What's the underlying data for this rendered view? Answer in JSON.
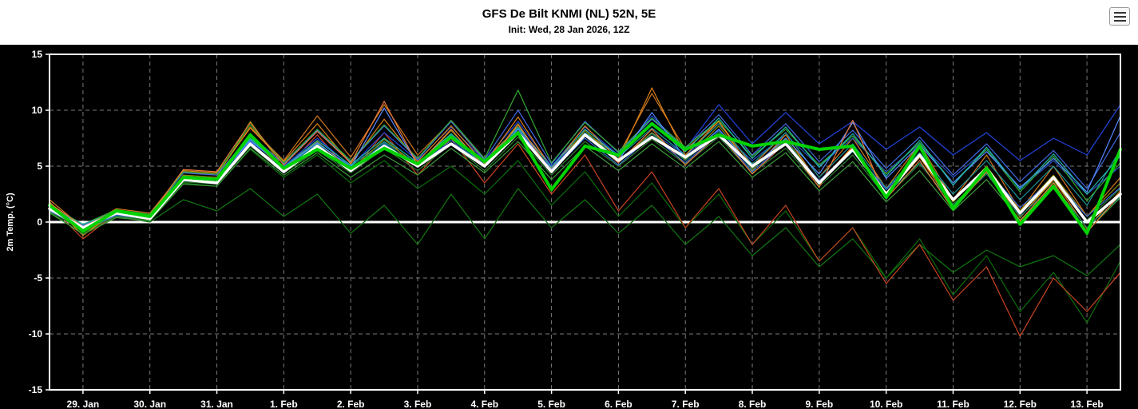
{
  "header": {
    "title": "GFS De Bilt KNMI (NL) 52N, 5E",
    "subtitle": "Init: Wed, 28 Jan 2026, 12Z"
  },
  "menu": {
    "icon": "hamburger-menu-icon"
  },
  "colors": {
    "plot_bg": "#000000",
    "header_bg": "#ffffff",
    "grid": "#7a7a7a",
    "axis_text": "#ffffff",
    "border": "#ffffff",
    "zero_line": "#ffffff",
    "mean_line": "#ffffff",
    "operational_line": "#00d300"
  },
  "chart_data": {
    "type": "line",
    "title": "GFS De Bilt KNMI (NL) 52N, 5E",
    "subtitle": "Init: Wed, 28 Jan 2026, 12Z",
    "ylabel": "2m Temp. (°C)",
    "ylim": [
      -15,
      15
    ],
    "yticks": [
      -15,
      -10,
      -5,
      0,
      5,
      10,
      15
    ],
    "x_tick_labels": [
      "29. Jan",
      "30. Jan",
      "31. Jan",
      "1. Feb",
      "2. Feb",
      "3. Feb",
      "4. Feb",
      "5. Feb",
      "6. Feb",
      "7. Feb",
      "8. Feb",
      "9. Feb",
      "10. Feb",
      "11. Feb",
      "12. Feb",
      "13. Feb"
    ],
    "x_step_days": 0.5,
    "x_label_offset_days": 0.5,
    "grid": "dashed",
    "legend": "none",
    "series": {
      "mean": {
        "name": "ensemble-mean",
        "color": "#ffffff",
        "values": [
          1.2,
          -0.5,
          0.8,
          0.3,
          3.8,
          3.5,
          7.0,
          4.5,
          6.8,
          4.6,
          6.8,
          5.0,
          7.0,
          5.0,
          8.0,
          4.5,
          7.8,
          5.5,
          7.6,
          5.8,
          7.8,
          5.0,
          7.0,
          3.5,
          6.5,
          2.5,
          6.0,
          2.0,
          4.8,
          0.8,
          4.0,
          0.0,
          2.5
        ]
      },
      "operational": {
        "name": "operational-run",
        "color": "#00d300",
        "values": [
          1.5,
          -0.8,
          1.0,
          0.5,
          4.0,
          3.8,
          7.8,
          4.8,
          6.5,
          4.8,
          6.6,
          5.2,
          7.6,
          5.4,
          8.0,
          2.9,
          6.8,
          6.0,
          8.8,
          6.5,
          7.8,
          6.8,
          7.2,
          6.5,
          6.8,
          2.2,
          6.8,
          1.2,
          4.8,
          -0.2,
          3.2,
          -1.0,
          6.5
        ]
      },
      "members": [
        {
          "color": "#117711",
          "values": [
            0.8,
            -1.0,
            0.5,
            0.0,
            2.0,
            1.0,
            3.0,
            0.5,
            2.5,
            -1.0,
            1.5,
            -2.0,
            2.5,
            -1.5,
            3.0,
            -0.5,
            2.0,
            -1.0,
            1.5,
            -2.0,
            0.5,
            -3.0,
            -0.5,
            -4.0,
            -1.5,
            -5.0,
            -2.0,
            -4.5,
            -2.5,
            -4.0,
            -3.0,
            -4.8,
            -2.0
          ]
        },
        {
          "color": "#0a6e0a",
          "values": [
            1.0,
            -0.7,
            0.6,
            0.2,
            3.5,
            3.2,
            6.5,
            4.0,
            6.0,
            3.5,
            5.5,
            3.0,
            5.0,
            2.5,
            5.5,
            1.5,
            4.5,
            0.5,
            3.5,
            -0.5,
            2.5,
            -2.0,
            1.0,
            -3.5,
            -0.5,
            -5.0,
            -1.5,
            -6.5,
            -3.0,
            -8.0,
            -4.5,
            -9.0,
            -3.5
          ]
        },
        {
          "color": "#cc4422",
          "values": [
            1.5,
            -1.5,
            0.8,
            0.4,
            4.2,
            3.6,
            7.5,
            4.6,
            7.8,
            4.4,
            8.0,
            4.2,
            7.5,
            3.5,
            7.0,
            2.5,
            6.0,
            1.0,
            4.5,
            -0.5,
            3.0,
            -2.0,
            1.5,
            -3.5,
            -0.5,
            -5.5,
            -2.0,
            -7.0,
            -4.0,
            -10.2,
            -5.0,
            -8.0,
            -4.5
          ]
        },
        {
          "color": "#d2781e",
          "values": [
            2.0,
            -0.5,
            1.2,
            0.8,
            4.5,
            4.2,
            8.5,
            5.5,
            9.5,
            5.8,
            10.5,
            6.0,
            9.0,
            5.5,
            8.5,
            5.0,
            8.0,
            6.0,
            11.5,
            6.5,
            9.0,
            5.0,
            8.0,
            4.0,
            7.5,
            3.0,
            7.0,
            2.0,
            6.0,
            1.0,
            5.0,
            0.5,
            4.0
          ]
        },
        {
          "color": "#2244dd",
          "values": [
            1.2,
            -0.5,
            0.9,
            0.5,
            4.0,
            3.8,
            7.2,
            5.0,
            7.5,
            5.0,
            8.0,
            5.5,
            8.5,
            5.5,
            9.0,
            5.0,
            8.5,
            6.0,
            9.5,
            6.5,
            10.5,
            7.0,
            9.8,
            7.0,
            9.0,
            6.5,
            8.5,
            6.0,
            8.0,
            5.5,
            7.5,
            6.0,
            10.5
          ]
        },
        {
          "color": "#2a52be",
          "values": [
            1.0,
            -0.6,
            0.7,
            0.4,
            3.8,
            3.6,
            7.0,
            4.6,
            6.8,
            4.8,
            7.0,
            5.0,
            7.5,
            5.0,
            8.0,
            4.8,
            8.0,
            5.5,
            8.0,
            6.0,
            8.2,
            5.5,
            7.8,
            5.0,
            7.5,
            4.5,
            7.0,
            4.0,
            6.5,
            3.0,
            5.5,
            2.5,
            5.0
          ]
        },
        {
          "color": "#19979a",
          "values": [
            1.4,
            -0.4,
            0.8,
            0.6,
            4.0,
            3.8,
            7.4,
            4.8,
            7.0,
            5.0,
            7.2,
            5.2,
            7.8,
            5.0,
            8.4,
            4.6,
            8.0,
            5.8,
            8.4,
            6.0,
            8.8,
            5.2,
            8.0,
            4.0,
            7.0,
            3.0,
            6.2,
            2.5,
            5.5,
            2.0,
            5.0,
            1.5,
            6.5
          ]
        },
        {
          "color": "#8a8a00",
          "values": [
            1.3,
            -0.9,
            0.6,
            0.3,
            4.2,
            4.0,
            9.0,
            4.8,
            7.2,
            4.6,
            7.4,
            5.0,
            8.2,
            5.0,
            8.8,
            4.4,
            8.2,
            5.4,
            8.0,
            5.6,
            8.6,
            4.8,
            7.4,
            3.6,
            6.6,
            2.6,
            5.8,
            1.8,
            5.0,
            1.0,
            4.2,
            0.5,
            3.5
          ]
        },
        {
          "color": "#2e7d32",
          "values": [
            1.0,
            -0.8,
            0.5,
            0.2,
            3.6,
            3.4,
            6.8,
            4.4,
            6.4,
            4.4,
            6.6,
            4.6,
            7.0,
            4.6,
            7.6,
            4.2,
            7.2,
            5.0,
            7.4,
            5.2,
            7.6,
            4.4,
            6.6,
            3.2,
            6.0,
            2.2,
            5.2,
            1.6,
            4.4,
            0.8,
            3.6,
            0.2,
            3.0
          ]
        },
        {
          "color": "#4169e1",
          "values": [
            1.6,
            -0.3,
            1.0,
            0.6,
            4.4,
            4.2,
            7.8,
            5.2,
            8.2,
            5.4,
            8.6,
            5.6,
            9.0,
            5.6,
            10.0,
            5.2,
            9.0,
            6.2,
            9.2,
            6.6,
            9.6,
            6.0,
            8.8,
            5.4,
            8.2,
            4.8,
            7.6,
            4.2,
            7.0,
            3.6,
            6.4,
            3.0,
            8.0
          ]
        },
        {
          "color": "#e08214",
          "values": [
            1.8,
            -1.2,
            1.0,
            0.5,
            4.6,
            4.4,
            8.4,
            5.4,
            8.8,
            5.2,
            9.2,
            5.4,
            8.6,
            5.2,
            9.4,
            4.8,
            8.6,
            5.6,
            12.0,
            6.0,
            9.0,
            4.6,
            7.8,
            3.4,
            6.8,
            2.4,
            5.8,
            1.4,
            4.8,
            0.4,
            3.8,
            -0.6,
            2.8
          ]
        },
        {
          "color": "#127f72",
          "values": [
            1.1,
            -0.6,
            0.6,
            0.3,
            3.9,
            3.7,
            7.1,
            4.7,
            6.9,
            4.7,
            7.1,
            4.9,
            7.5,
            4.9,
            8.1,
            4.5,
            7.7,
            5.3,
            7.9,
            5.5,
            8.1,
            4.7,
            7.3,
            3.5,
            6.3,
            2.5,
            5.3,
            1.5,
            4.3,
            0.5,
            3.3,
            -0.5,
            2.3
          ]
        },
        {
          "color": "#33aa33",
          "values": [
            1.5,
            -0.2,
            1.1,
            0.7,
            4.5,
            4.3,
            8.7,
            5.3,
            8.3,
            5.5,
            8.7,
            5.7,
            9.1,
            5.7,
            11.8,
            5.3,
            8.9,
            6.3,
            9.3,
            6.7,
            9.1,
            5.9,
            8.3,
            5.1,
            7.7,
            4.3,
            7.1,
            3.5,
            6.5,
            2.7,
            5.9,
            1.9,
            5.3
          ]
        },
        {
          "color": "#5588ff",
          "values": [
            1.0,
            -0.5,
            0.8,
            0.5,
            4.1,
            3.9,
            7.3,
            4.9,
            7.1,
            4.9,
            10.2,
            5.1,
            7.7,
            5.1,
            8.3,
            4.7,
            7.9,
            5.5,
            9.8,
            5.7,
            8.3,
            4.9,
            7.5,
            4.3,
            8.9,
            3.9,
            6.9,
            3.5,
            6.3,
            3.1,
            5.7,
            2.7,
            9.5
          ]
        },
        {
          "color": "#20b2aa",
          "values": [
            1.3,
            -0.2,
            0.9,
            0.6,
            4.1,
            3.9,
            7.5,
            4.9,
            7.3,
            5.1,
            7.5,
            5.3,
            7.9,
            5.3,
            8.5,
            4.9,
            8.3,
            5.9,
            8.7,
            6.3,
            9.3,
            5.7,
            8.5,
            4.9,
            7.9,
            4.1,
            7.3,
            3.3,
            6.7,
            2.9,
            6.1,
            2.5,
            5.9
          ]
        },
        {
          "color": "#3c9d3c",
          "values": [
            0.9,
            -1.1,
            0.4,
            0.1,
            3.4,
            3.2,
            6.6,
            4.2,
            6.2,
            4.0,
            6.0,
            4.2,
            6.6,
            4.4,
            7.2,
            3.8,
            6.8,
            4.6,
            7.0,
            4.8,
            7.2,
            4.0,
            6.2,
            2.8,
            5.4,
            1.8,
            4.6,
            1.0,
            3.8,
            0.2,
            3.0,
            -0.8,
            2.2
          ]
        },
        {
          "color": "#e6793b",
          "values": [
            1.7,
            -0.4,
            1.0,
            0.6,
            4.7,
            4.5,
            8.9,
            5.1,
            8.1,
            5.3,
            10.8,
            5.1,
            8.3,
            4.9,
            8.7,
            4.5,
            7.9,
            5.3,
            8.3,
            5.1,
            7.9,
            4.3,
            7.1,
            3.1,
            9.1,
            2.1,
            5.5,
            1.1,
            4.5,
            0.1,
            3.5,
            -0.9,
            2.5
          ]
        },
        {
          "color": "#3b6bd6",
          "values": [
            1.2,
            -0.7,
            0.6,
            0.3,
            3.7,
            3.5,
            6.9,
            4.5,
            6.7,
            4.7,
            6.9,
            4.9,
            7.3,
            4.9,
            7.9,
            4.5,
            7.5,
            5.1,
            7.7,
            5.3,
            7.9,
            4.5,
            7.1,
            3.7,
            6.5,
            2.9,
            5.9,
            2.1,
            4.7,
            1.3,
            3.9,
            0.5,
            3.1
          ]
        }
      ]
    }
  }
}
